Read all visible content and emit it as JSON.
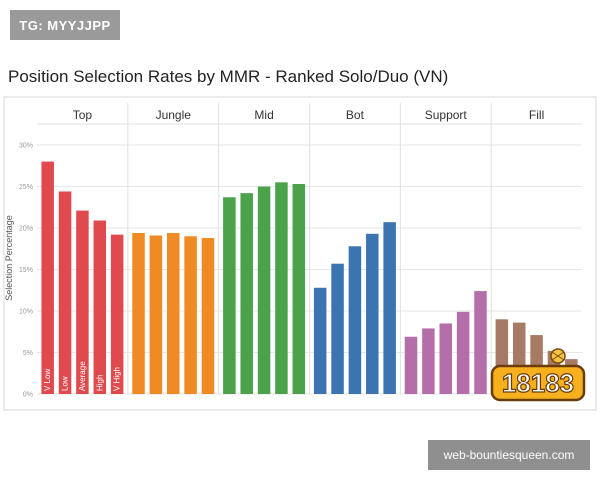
{
  "tag": "TG: MYYJJPP",
  "watermark": "web-bountiesqueen.com",
  "logo": {
    "text": "18183",
    "icon": "game-site-logo-icon"
  },
  "colors": {
    "Top": "#e04a4f",
    "Jungle": "#f08a25",
    "Mid": "#4ba24a",
    "Bot": "#3c74b2",
    "Support": "#b46eaa",
    "Fill": "#a67a64"
  },
  "chart_data": {
    "type": "bar",
    "title": "Position Selection Rates by MMR - Ranked Solo/Duo (VN)",
    "ylabel": "Selection Percentage",
    "xlabel": "",
    "ylim": [
      0,
      30
    ],
    "yticks": [
      "0%",
      "5%",
      "10%",
      "15%",
      "20%",
      "25%",
      "30%"
    ],
    "grid": true,
    "groups": [
      "Top",
      "Jungle",
      "Mid",
      "Bot",
      "Support",
      "Fill"
    ],
    "mmr_tiers": [
      "V Low",
      "Low",
      "Average",
      "High",
      "V High"
    ],
    "series": [
      {
        "name": "Top",
        "values": [
          28.0,
          24.4,
          22.1,
          20.9,
          19.2
        ]
      },
      {
        "name": "Jungle",
        "values": [
          19.4,
          19.1,
          19.4,
          19.0,
          18.8
        ]
      },
      {
        "name": "Mid",
        "values": [
          23.7,
          24.2,
          25.0,
          25.5,
          25.3
        ]
      },
      {
        "name": "Bot",
        "values": [
          12.8,
          15.7,
          17.8,
          19.3,
          20.7
        ]
      },
      {
        "name": "Support",
        "values": [
          6.9,
          7.9,
          8.5,
          9.9,
          12.4
        ]
      },
      {
        "name": "Fill",
        "values": [
          9.0,
          8.6,
          7.1,
          5.2,
          4.2
        ]
      }
    ]
  }
}
